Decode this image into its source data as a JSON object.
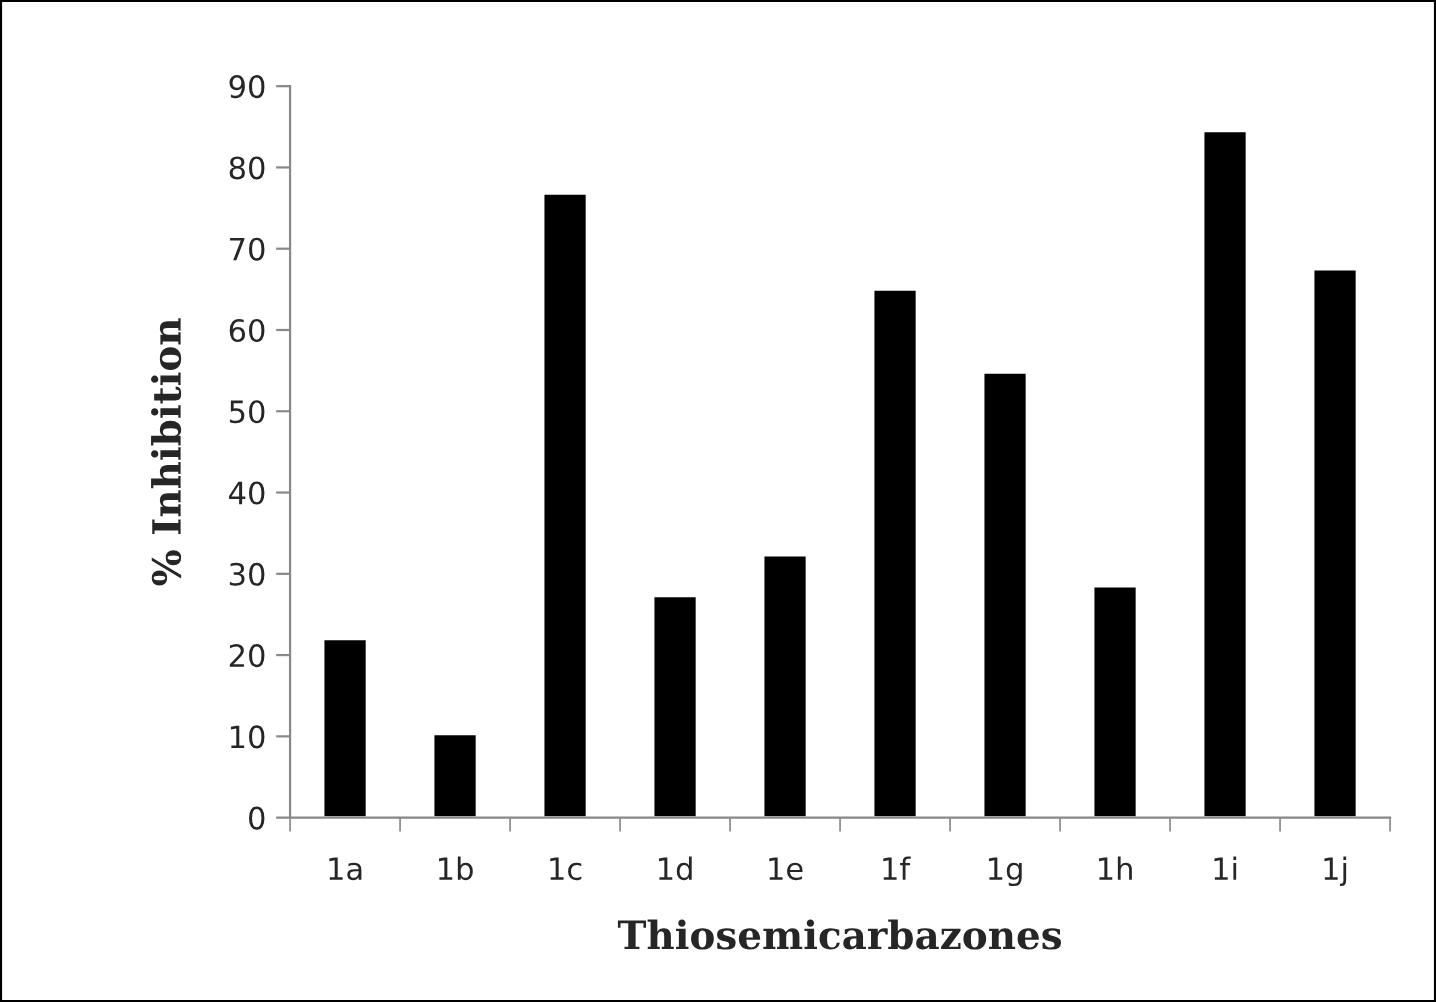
{
  "chart_data": {
    "type": "bar",
    "xlabel": "Thiosemicarbazones",
    "ylabel": "% Inhibition",
    "categories": [
      "1a",
      "1b",
      "1c",
      "1d",
      "1e",
      "1f",
      "1g",
      "1h",
      "1i",
      "1j"
    ],
    "values": [
      22,
      10.3,
      76.8,
      27.3,
      32.3,
      65,
      54.8,
      28.5,
      84.5,
      67.5
    ],
    "color": "#000000",
    "ylim": [
      0,
      90
    ],
    "yticks": [
      0,
      10,
      20,
      30,
      40,
      50,
      60,
      70,
      80,
      90
    ],
    "grid": false,
    "legend": false
  }
}
